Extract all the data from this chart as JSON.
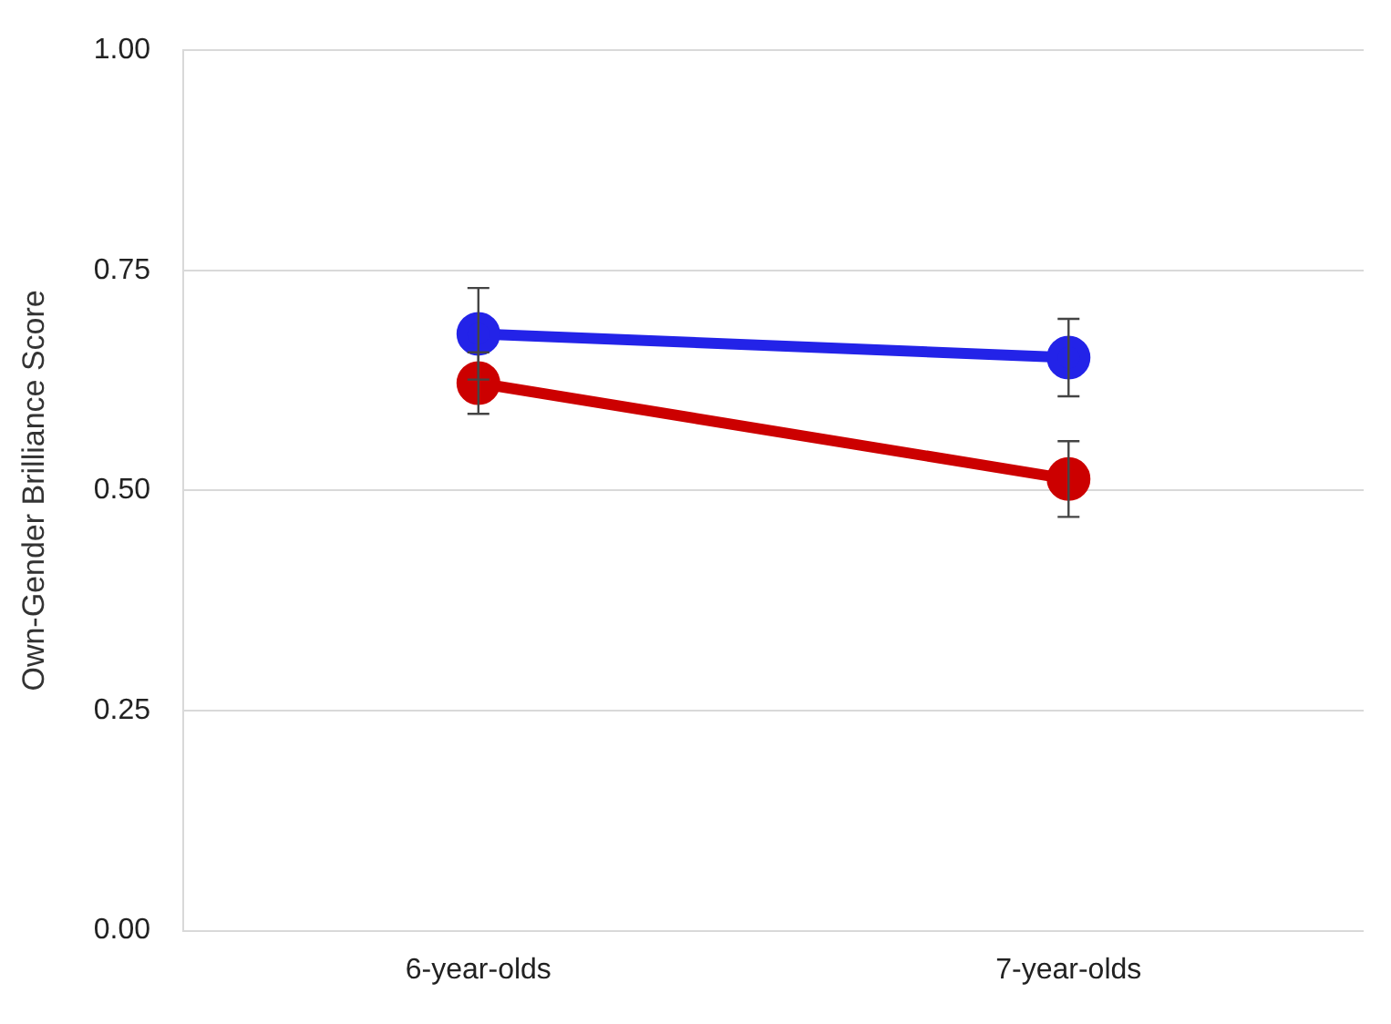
{
  "chart_data": {
    "type": "line",
    "ylabel": "Own-Gender Brilliance Score",
    "categories": [
      "6-year-olds",
      "7-year-olds"
    ],
    "series": [
      {
        "color": "#2323e8",
        "values": [
          0.678,
          0.651
        ],
        "errors": [
          0.052,
          0.044
        ]
      },
      {
        "color": "#cc0000",
        "values": [
          0.622,
          0.513
        ],
        "errors": [
          0.035,
          0.043
        ]
      }
    ],
    "ylim": [
      0,
      1
    ],
    "yticks": [
      {
        "value": 0,
        "label": "0.00"
      },
      {
        "value": 0.25,
        "label": "0.25"
      },
      {
        "value": 0.5,
        "label": "0.50"
      },
      {
        "value": 0.75,
        "label": "0.75"
      },
      {
        "value": 1,
        "label": "1.00"
      }
    ],
    "grid": "y",
    "marker": "circle",
    "line_style": "solid",
    "legend": false
  }
}
